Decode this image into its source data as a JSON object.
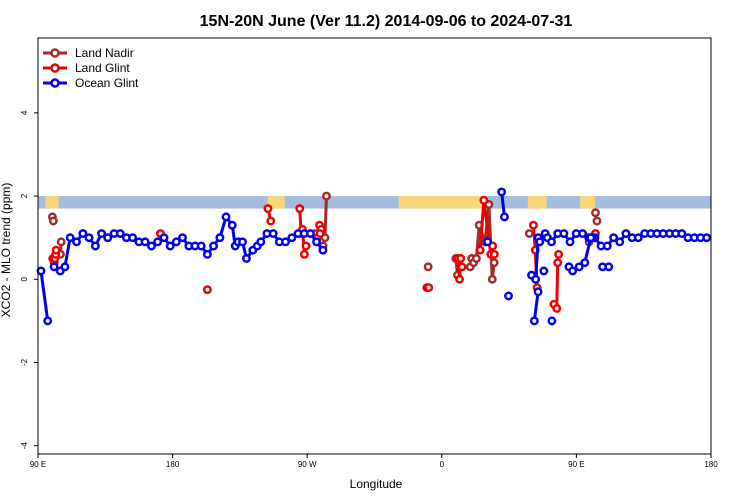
{
  "chart_data": {
    "type": "line",
    "title": "15N-20N June (Ver 11.2)   2014-09-06 to 2024-07-31",
    "xlabel": "Longitude",
    "ylabel": "XCO2 - MLO trend (ppm)",
    "xlim": [
      90,
      450
    ],
    "ylim": [
      -4.2,
      5.8
    ],
    "x_ticks": [
      {
        "value": 90,
        "label": "90 E"
      },
      {
        "value": 162,
        "label": "180"
      },
      {
        "value": 234,
        "label": "90 W"
      },
      {
        "value": 306,
        "label": "0"
      },
      {
        "value": 378,
        "label": "90 E"
      },
      {
        "value": 450,
        "label": "180"
      }
    ],
    "y_ticks": [
      {
        "value": -4,
        "label": "-4"
      },
      {
        "value": -2,
        "label": "-2"
      },
      {
        "value": 0,
        "label": "0"
      },
      {
        "value": 2,
        "label": "2"
      },
      {
        "value": 4,
        "label": "4"
      }
    ],
    "legend_position": "top-left",
    "map_strip": {
      "y_range": [
        1.7,
        2.0
      ],
      "ocean_color": "#a4bcdd",
      "land_color": "#f8d77a"
    },
    "series": [
      {
        "name": "Land Nadir",
        "color": "#a52a2a",
        "points": [
          [
            97.7,
            1.5
          ],
          [
            98.2,
            1.4
          ],
          [
            null,
            null
          ],
          [
            102.0,
            0.6
          ],
          [
            102.4,
            0.9
          ],
          [
            null,
            null
          ],
          [
            238.1,
            1.1
          ],
          [
            239.5,
            1.0
          ],
          [
            null,
            null
          ],
          [
            242.5,
            0.8
          ],
          [
            243.5,
            1.0
          ],
          [
            244.3,
            2.0
          ],
          [
            null,
            null
          ],
          [
            298.7,
            0.3
          ],
          [
            null,
            null
          ],
          [
            313.5,
            0.5
          ],
          [
            314.4,
            0.1
          ],
          [
            null,
            null
          ],
          [
            321.2,
            0.3
          ],
          [
            322.0,
            0.5
          ],
          [
            323.0,
            0.4
          ],
          [
            324.5,
            0.5
          ],
          [
            326.0,
            1.3
          ],
          [
            329.2,
            0.9
          ],
          [
            331.2,
            1.8
          ],
          [
            333.0,
            0.0
          ],
          [
            334.0,
            0.4
          ],
          [
            null,
            null
          ],
          [
            352.8,
            1.1
          ],
          [
            null,
            null
          ],
          [
            384.8,
            0.9
          ],
          [
            null,
            null
          ],
          [
            388.2,
            1.6
          ],
          [
            389.0,
            1.4
          ]
        ]
      },
      {
        "name": "Land Glint",
        "color": "#ee0000",
        "points": [
          [
            97.9,
            0.5
          ],
          [
            98.7,
            0.4
          ],
          [
            99.0,
            0.5
          ],
          [
            99.5,
            0.6
          ],
          [
            99.7,
            0.7
          ],
          [
            null,
            null
          ],
          [
            155.5,
            1.1
          ],
          [
            null,
            null
          ],
          [
            180.6,
            -0.25
          ],
          [
            null,
            null
          ],
          [
            213.0,
            1.7
          ],
          [
            214.5,
            1.4
          ],
          [
            null,
            null
          ],
          [
            230.0,
            1.7
          ],
          [
            230.8,
            1.1
          ],
          [
            231.5,
            1.2
          ],
          [
            232.5,
            0.6
          ],
          [
            233.4,
            0.8
          ],
          [
            null,
            null
          ],
          [
            240.6,
            1.3
          ],
          [
            241.5,
            1.2
          ],
          [
            null,
            null
          ],
          [
            298.0,
            -0.2
          ],
          [
            299.0,
            -0.2
          ],
          [
            null,
            null
          ],
          [
            314.6,
            0.5
          ],
          [
            315.5,
            0.0
          ],
          [
            316.1,
            0.5
          ],
          [
            316.8,
            0.3
          ],
          [
            null,
            null
          ],
          [
            326.5,
            0.7
          ],
          [
            328.5,
            1.9
          ],
          [
            332.2,
            0.6
          ],
          [
            333.2,
            0.8
          ],
          [
            334.1,
            0.6
          ],
          [
            null,
            null
          ],
          [
            355.0,
            1.3
          ],
          [
            356.0,
            0.7
          ],
          [
            357.0,
            -0.2
          ],
          [
            null,
            null
          ],
          [
            366.0,
            -0.6
          ],
          [
            367.5,
            -0.7
          ],
          [
            368.0,
            0.4
          ],
          [
            368.5,
            0.6
          ],
          [
            null,
            null
          ],
          [
            388.2,
            1.1
          ],
          [
            null,
            null
          ],
          [
            240.9,
            1.1
          ]
        ]
      },
      {
        "name": "Ocean Glint",
        "color": "#0000ee",
        "points": [
          [
            91.6,
            0.2
          ],
          [
            95.2,
            -1.0
          ],
          [
            null,
            null
          ],
          [
            98.6,
            0.3
          ],
          [
            101.9,
            0.2
          ],
          [
            104.4,
            0.3
          ],
          [
            107.2,
            1.0
          ],
          [
            110.6,
            0.9
          ],
          [
            114.0,
            1.1
          ],
          [
            117.3,
            1.0
          ],
          [
            120.7,
            0.8
          ],
          [
            124.0,
            1.1
          ],
          [
            127.3,
            1.0
          ],
          [
            130.7,
            1.1
          ],
          [
            134.0,
            1.1
          ],
          [
            137.3,
            1.0
          ],
          [
            140.6,
            1.0
          ],
          [
            144.0,
            0.9
          ],
          [
            147.3,
            0.9
          ],
          [
            150.7,
            0.8
          ],
          [
            154.0,
            0.9
          ],
          [
            157.4,
            1.0
          ],
          [
            160.7,
            0.8
          ],
          [
            164.0,
            0.9
          ],
          [
            167.3,
            1.0
          ],
          [
            170.7,
            0.8
          ],
          [
            174.0,
            0.8
          ],
          [
            177.3,
            0.8
          ],
          [
            180.6,
            0.6
          ],
          [
            183.9,
            0.8
          ],
          [
            187.3,
            1.0
          ],
          [
            190.6,
            1.5
          ],
          [
            193.9,
            1.3
          ],
          [
            195.5,
            0.8
          ],
          [
            197.0,
            0.9
          ],
          [
            199.4,
            0.9
          ],
          [
            201.5,
            0.5
          ],
          [
            204.9,
            0.7
          ],
          [
            207.3,
            0.8
          ],
          [
            209.2,
            0.9
          ],
          [
            212.5,
            1.1
          ],
          [
            215.8,
            1.1
          ],
          [
            219.1,
            0.9
          ],
          [
            222.4,
            0.9
          ],
          [
            225.8,
            1.0
          ],
          [
            229.1,
            1.1
          ],
          [
            232.4,
            1.1
          ],
          [
            235.7,
            1.1
          ],
          [
            239.0,
            0.9
          ],
          [
            242.4,
            0.7
          ],
          [
            null,
            null
          ],
          [
            354.0,
            0.1
          ],
          [
            356.2,
            0.0
          ],
          [
            357.6,
            1.0
          ],
          [
            358.4,
            0.9
          ],
          [
            361.3,
            1.1
          ],
          [
            362.5,
            1.0
          ],
          [
            364.7,
            0.9
          ],
          [
            368.0,
            1.1
          ],
          [
            371.3,
            1.1
          ],
          [
            374.6,
            0.9
          ],
          [
            377.9,
            1.1
          ],
          [
            381.3,
            1.1
          ],
          [
            384.6,
            1.0
          ],
          [
            387.9,
            1.0
          ],
          [
            391.2,
            0.8
          ],
          [
            394.5,
            0.8
          ],
          [
            397.9,
            1.0
          ],
          [
            401.2,
            0.9
          ],
          [
            404.5,
            1.1
          ],
          [
            407.8,
            1.0
          ],
          [
            411.1,
            1.0
          ],
          [
            414.5,
            1.1
          ],
          [
            417.8,
            1.1
          ],
          [
            421.1,
            1.1
          ],
          [
            424.4,
            1.1
          ],
          [
            427.8,
            1.1
          ],
          [
            431.1,
            1.1
          ],
          [
            434.4,
            1.1
          ],
          [
            437.7,
            1.0
          ],
          [
            441.1,
            1.0
          ],
          [
            444.4,
            1.0
          ],
          [
            447.7,
            1.0
          ],
          [
            null,
            null
          ],
          [
            386.5,
            1.0
          ],
          [
            null,
            null
          ],
          [
            392.0,
            0.3
          ],
          [
            395.3,
            0.3
          ],
          [
            null,
            null
          ],
          [
            330.5,
            0.9
          ],
          [
            null,
            null
          ],
          [
            338.0,
            2.1
          ],
          [
            339.5,
            1.5
          ],
          [
            null,
            null
          ],
          [
            341.7,
            -0.4
          ],
          [
            null,
            null
          ],
          [
            355.5,
            -1.0
          ],
          [
            357.5,
            -0.3
          ],
          [
            null,
            null
          ],
          [
            360.6,
            0.2
          ],
          [
            null,
            null
          ],
          [
            364.9,
            -1.0
          ],
          [
            null,
            null
          ],
          [
            374.0,
            0.3
          ],
          [
            376.0,
            0.2
          ],
          [
            379.5,
            0.3
          ],
          [
            382.5,
            0.4
          ],
          [
            385.7,
            1.0
          ]
        ]
      }
    ]
  }
}
